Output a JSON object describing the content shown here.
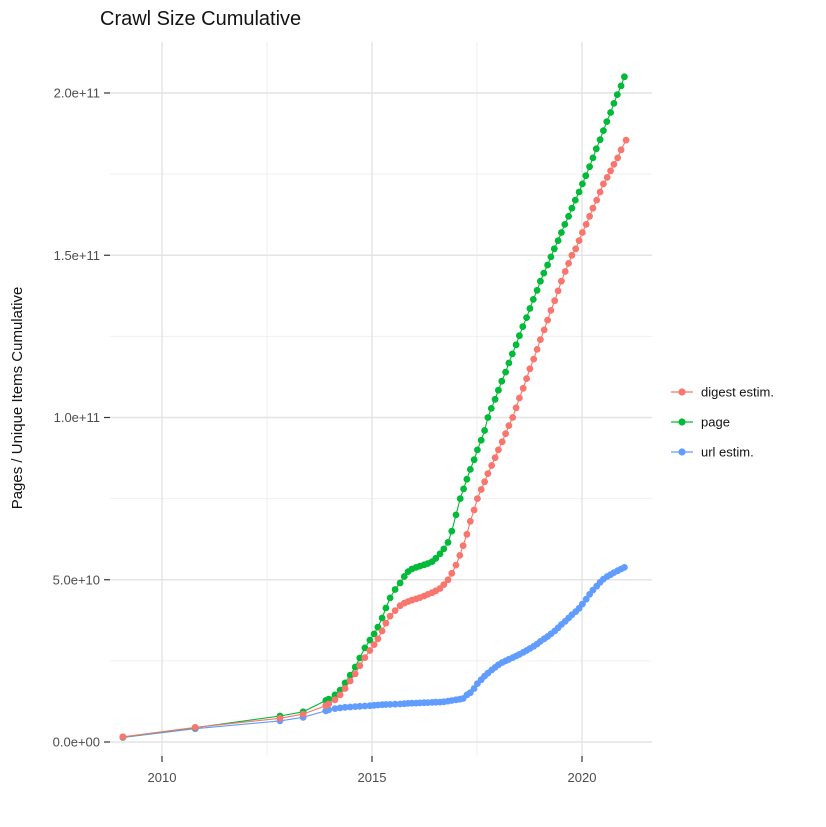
{
  "title": "Crawl Size Cumulative",
  "x_axis": {
    "tick_labels": [
      "2010",
      "2015",
      "2020"
    ],
    "tick_years": [
      2010,
      2015,
      2020
    ],
    "minor_years": [
      2012.5,
      2017.5
    ]
  },
  "y_axis": {
    "title": "Pages / Unique Items Cumulative",
    "tick_labels": [
      "0.0e+00",
      "5.0e+10",
      "1.0e+11",
      "1.5e+11",
      "2.0e+11"
    ],
    "tick_values": [
      0,
      50000000000.0,
      100000000000.0,
      150000000000.0,
      200000000000.0
    ],
    "minor_values": [
      25000000000.0,
      75000000000.0,
      125000000000.0,
      175000000000.0
    ]
  },
  "chart_data": {
    "type": "line",
    "title": "Crawl Size Cumulative",
    "xlabel": "",
    "ylabel": "Pages / Unique Items Cumulative",
    "xlim": [
      2008.77,
      2021.65
    ],
    "ylim": [
      0,
      216000000000.0
    ],
    "x_ticks": [
      2010,
      2015,
      2020
    ],
    "y_ticks": [
      0,
      50000000000.0,
      100000000000.0,
      150000000000.0,
      200000000000.0
    ],
    "grid": true,
    "legend_position": "right",
    "marker": "point",
    "series": [
      {
        "name": "digest estim.",
        "color": "#F8766D",
        "points": [
          [
            2009.07,
            1600000000.0
          ],
          [
            2010.79,
            4500000000.0
          ],
          [
            2012.81,
            7300000000.0
          ],
          [
            2013.36,
            8600000000.0
          ],
          [
            2013.9,
            11200000000.0
          ],
          [
            2013.97,
            11700000000.0
          ],
          [
            2014.12,
            13000000000.0
          ],
          [
            2014.24,
            14500000000.0
          ],
          [
            2014.36,
            16500000000.0
          ],
          [
            2014.48,
            18800000000.0
          ],
          [
            2014.6,
            21000000000.0
          ],
          [
            2014.71,
            23500000000.0
          ],
          [
            2014.83,
            26000000000.0
          ],
          [
            2014.95,
            28200000000.0
          ],
          [
            2015.05,
            30000000000.0
          ],
          [
            2015.14,
            31800000000.0
          ],
          [
            2015.24,
            34200000000.0
          ],
          [
            2015.33,
            36600000000.0
          ],
          [
            2015.43,
            38800000000.0
          ],
          [
            2015.55,
            40500000000.0
          ],
          [
            2015.67,
            42000000000.0
          ],
          [
            2015.77,
            42800000000.0
          ],
          [
            2015.86,
            43300000000.0
          ],
          [
            2015.95,
            43700000000.0
          ],
          [
            2016.05,
            44100000000.0
          ],
          [
            2016.14,
            44500000000.0
          ],
          [
            2016.24,
            45000000000.0
          ],
          [
            2016.33,
            45500000000.0
          ],
          [
            2016.43,
            46000000000.0
          ],
          [
            2016.52,
            46600000000.0
          ],
          [
            2016.62,
            47300000000.0
          ],
          [
            2016.71,
            48500000000.0
          ],
          [
            2016.81,
            50000000000.0
          ],
          [
            2016.9,
            52000000000.0
          ],
          [
            2017.0,
            54500000000.0
          ],
          [
            2017.09,
            57500000000.0
          ],
          [
            2017.17,
            60500000000.0
          ],
          [
            2017.26,
            64000000000.0
          ],
          [
            2017.34,
            68000000000.0
          ],
          [
            2017.43,
            71500000000.0
          ],
          [
            2017.51,
            75000000000.0
          ],
          [
            2017.6,
            77800000000.0
          ],
          [
            2017.68,
            80200000000.0
          ],
          [
            2017.76,
            82700000000.0
          ],
          [
            2017.85,
            85200000000.0
          ],
          [
            2017.93,
            87600000000.0
          ],
          [
            2018.01,
            90000000000.0
          ],
          [
            2018.1,
            92500000000.0
          ],
          [
            2018.18,
            95000000000.0
          ],
          [
            2018.26,
            97500000000.0
          ],
          [
            2018.35,
            100000000000.0
          ],
          [
            2018.43,
            103000000000.0
          ],
          [
            2018.51,
            106000000000.0
          ],
          [
            2018.6,
            109000000000.0
          ],
          [
            2018.68,
            112000000000.0
          ],
          [
            2018.76,
            115000000000.0
          ],
          [
            2018.85,
            118000000000.0
          ],
          [
            2018.93,
            121000000000.0
          ],
          [
            2019.01,
            124000000000.0
          ],
          [
            2019.1,
            127000000000.0
          ],
          [
            2019.18,
            130000000000.0
          ],
          [
            2019.26,
            133000000000.0
          ],
          [
            2019.35,
            136000000000.0
          ],
          [
            2019.43,
            139000000000.0
          ],
          [
            2019.51,
            142000000000.0
          ],
          [
            2019.6,
            145000000000.0
          ],
          [
            2019.68,
            147500000000.0
          ],
          [
            2019.76,
            150000000000.0
          ],
          [
            2019.85,
            152000000000.0
          ],
          [
            2019.93,
            154500000000.0
          ],
          [
            2020.01,
            157000000000.0
          ],
          [
            2020.1,
            159500000000.0
          ],
          [
            2020.18,
            162000000000.0
          ],
          [
            2020.26,
            164500000000.0
          ],
          [
            2020.35,
            167000000000.0
          ],
          [
            2020.43,
            169500000000.0
          ],
          [
            2020.51,
            172000000000.0
          ],
          [
            2020.6,
            174000000000.0
          ],
          [
            2020.68,
            176000000000.0
          ],
          [
            2020.76,
            178000000000.0
          ],
          [
            2020.85,
            180000000000.0
          ],
          [
            2020.93,
            182500000000.0
          ],
          [
            2021.05,
            185500000000.0
          ]
        ]
      },
      {
        "name": "page",
        "color": "#00BA38",
        "points": [
          [
            2009.07,
            1500000000.0
          ],
          [
            2010.79,
            4400000000.0
          ],
          [
            2012.81,
            8000000000.0
          ],
          [
            2013.36,
            9300000000.0
          ],
          [
            2013.9,
            12800000000.0
          ],
          [
            2013.97,
            13200000000.0
          ],
          [
            2014.12,
            14500000000.0
          ],
          [
            2014.24,
            16000000000.0
          ],
          [
            2014.36,
            18200000000.0
          ],
          [
            2014.48,
            20600000000.0
          ],
          [
            2014.6,
            23100000000.0
          ],
          [
            2014.71,
            25900000000.0
          ],
          [
            2014.83,
            29000000000.0
          ],
          [
            2014.95,
            31400000000.0
          ],
          [
            2015.05,
            33300000000.0
          ],
          [
            2015.14,
            35400000000.0
          ],
          [
            2015.24,
            38200000000.0
          ],
          [
            2015.33,
            41300000000.0
          ],
          [
            2015.43,
            44400000000.0
          ],
          [
            2015.55,
            47000000000.0
          ],
          [
            2015.67,
            49000000000.0
          ],
          [
            2015.77,
            51000000000.0
          ],
          [
            2015.86,
            52500000000.0
          ],
          [
            2015.95,
            53300000000.0
          ],
          [
            2016.05,
            53800000000.0
          ],
          [
            2016.14,
            54200000000.0
          ],
          [
            2016.24,
            54600000000.0
          ],
          [
            2016.33,
            55000000000.0
          ],
          [
            2016.43,
            55600000000.0
          ],
          [
            2016.52,
            56600000000.0
          ],
          [
            2016.62,
            58000000000.0
          ],
          [
            2016.71,
            59500000000.0
          ],
          [
            2016.81,
            61500000000.0
          ],
          [
            2016.9,
            65000000000.0
          ],
          [
            2017.0,
            70000000000.0
          ],
          [
            2017.1,
            75000000000.0
          ],
          [
            2017.18,
            78000000000.0
          ],
          [
            2017.26,
            81000000000.0
          ],
          [
            2017.34,
            84000000000.0
          ],
          [
            2017.43,
            87000000000.0
          ],
          [
            2017.51,
            90000000000.0
          ],
          [
            2017.6,
            93000000000.0
          ],
          [
            2017.68,
            96000000000.0
          ],
          [
            2017.76,
            100000000000.0
          ],
          [
            2017.84,
            102800000000.0
          ],
          [
            2017.93,
            105600000000.0
          ],
          [
            2018.01,
            108400000000.0
          ],
          [
            2018.09,
            111200000000.0
          ],
          [
            2018.18,
            114000000000.0
          ],
          [
            2018.26,
            116800000000.0
          ],
          [
            2018.34,
            119600000000.0
          ],
          [
            2018.43,
            122400000000.0
          ],
          [
            2018.51,
            125200000000.0
          ],
          [
            2018.59,
            128000000000.0
          ],
          [
            2018.68,
            130800000000.0
          ],
          [
            2018.76,
            133600000000.0
          ],
          [
            2018.84,
            136400000000.0
          ],
          [
            2018.93,
            139200000000.0
          ],
          [
            2019.01,
            142000000000.0
          ],
          [
            2019.09,
            144500000000.0
          ],
          [
            2019.18,
            147000000000.0
          ],
          [
            2019.26,
            149500000000.0
          ],
          [
            2019.34,
            152000000000.0
          ],
          [
            2019.43,
            154500000000.0
          ],
          [
            2019.51,
            157000000000.0
          ],
          [
            2019.59,
            159500000000.0
          ],
          [
            2019.68,
            162000000000.0
          ],
          [
            2019.76,
            164500000000.0
          ],
          [
            2019.84,
            167000000000.0
          ],
          [
            2019.93,
            169500000000.0
          ],
          [
            2020.01,
            172000000000.0
          ],
          [
            2020.09,
            174500000000.0
          ],
          [
            2020.18,
            177300000000.0
          ],
          [
            2020.26,
            180000000000.0
          ],
          [
            2020.34,
            182800000000.0
          ],
          [
            2020.43,
            185600000000.0
          ],
          [
            2020.51,
            188400000000.0
          ],
          [
            2020.59,
            191200000000.0
          ],
          [
            2020.68,
            194000000000.0
          ],
          [
            2020.76,
            196800000000.0
          ],
          [
            2020.84,
            199500000000.0
          ],
          [
            2020.93,
            202200000000.0
          ],
          [
            2021.01,
            205000000000.0
          ]
        ]
      },
      {
        "name": "url estim.",
        "color": "#619CFF",
        "points": [
          [
            2009.07,
            1400000000.0
          ],
          [
            2010.79,
            4100000000.0
          ],
          [
            2012.81,
            6500000000.0
          ],
          [
            2013.36,
            7600000000.0
          ],
          [
            2013.9,
            9600000000.0
          ],
          [
            2013.97,
            9900000000.0
          ],
          [
            2014.12,
            10300000000.0
          ],
          [
            2014.24,
            10500000000.0
          ],
          [
            2014.36,
            10700000000.0
          ],
          [
            2014.48,
            10800000000.0
          ],
          [
            2014.6,
            10900000000.0
          ],
          [
            2014.71,
            11000000000.0
          ],
          [
            2014.83,
            11100000000.0
          ],
          [
            2014.95,
            11200000000.0
          ],
          [
            2015.05,
            11300000000.0
          ],
          [
            2015.14,
            11400000000.0
          ],
          [
            2015.24,
            11500000000.0
          ],
          [
            2015.33,
            11550000000.0
          ],
          [
            2015.43,
            11600000000.0
          ],
          [
            2015.55,
            11650000000.0
          ],
          [
            2015.67,
            11700000000.0
          ],
          [
            2015.77,
            11800000000.0
          ],
          [
            2015.86,
            11900000000.0
          ],
          [
            2015.95,
            11950000000.0
          ],
          [
            2016.05,
            12000000000.0
          ],
          [
            2016.14,
            12050000000.0
          ],
          [
            2016.24,
            12100000000.0
          ],
          [
            2016.33,
            12150000000.0
          ],
          [
            2016.43,
            12200000000.0
          ],
          [
            2016.52,
            12250000000.0
          ],
          [
            2016.62,
            12300000000.0
          ],
          [
            2016.71,
            12400000000.0
          ],
          [
            2016.81,
            12600000000.0
          ],
          [
            2016.9,
            12800000000.0
          ],
          [
            2017.0,
            13000000000.0
          ],
          [
            2017.09,
            13200000000.0
          ],
          [
            2017.17,
            13400000000.0
          ],
          [
            2017.26,
            14500000000.0
          ],
          [
            2017.34,
            15200000000.0
          ],
          [
            2017.43,
            16500000000.0
          ],
          [
            2017.51,
            18000000000.0
          ],
          [
            2017.6,
            19200000000.0
          ],
          [
            2017.68,
            20300000000.0
          ],
          [
            2017.76,
            21200000000.0
          ],
          [
            2017.85,
            22200000000.0
          ],
          [
            2017.93,
            23000000000.0
          ],
          [
            2018.01,
            23800000000.0
          ],
          [
            2018.1,
            24500000000.0
          ],
          [
            2018.18,
            25000000000.0
          ],
          [
            2018.26,
            25500000000.0
          ],
          [
            2018.35,
            26000000000.0
          ],
          [
            2018.43,
            26500000000.0
          ],
          [
            2018.51,
            27000000000.0
          ],
          [
            2018.6,
            27600000000.0
          ],
          [
            2018.68,
            28200000000.0
          ],
          [
            2018.76,
            28800000000.0
          ],
          [
            2018.85,
            29500000000.0
          ],
          [
            2018.93,
            30200000000.0
          ],
          [
            2019.01,
            31000000000.0
          ],
          [
            2019.1,
            31800000000.0
          ],
          [
            2019.18,
            32500000000.0
          ],
          [
            2019.26,
            33300000000.0
          ],
          [
            2019.35,
            34200000000.0
          ],
          [
            2019.43,
            35200000000.0
          ],
          [
            2019.51,
            36200000000.0
          ],
          [
            2019.6,
            37200000000.0
          ],
          [
            2019.68,
            38200000000.0
          ],
          [
            2019.76,
            39200000000.0
          ],
          [
            2019.85,
            40200000000.0
          ],
          [
            2019.93,
            41200000000.0
          ],
          [
            2020.01,
            42500000000.0
          ],
          [
            2020.1,
            44000000000.0
          ],
          [
            2020.18,
            45500000000.0
          ],
          [
            2020.26,
            46800000000.0
          ],
          [
            2020.35,
            48000000000.0
          ],
          [
            2020.43,
            49200000000.0
          ],
          [
            2020.51,
            50200000000.0
          ],
          [
            2020.6,
            51000000000.0
          ],
          [
            2020.68,
            51600000000.0
          ],
          [
            2020.76,
            52200000000.0
          ],
          [
            2020.85,
            52800000000.0
          ],
          [
            2020.93,
            53300000000.0
          ],
          [
            2021.01,
            53800000000.0
          ]
        ]
      }
    ]
  },
  "colors": {
    "digest": "#F8766D",
    "page": "#00BA38",
    "url": "#619CFF",
    "grid_major": "#e4e4e4",
    "grid_minor": "#f0f0f0",
    "tick_text": "#4d4d4d"
  }
}
